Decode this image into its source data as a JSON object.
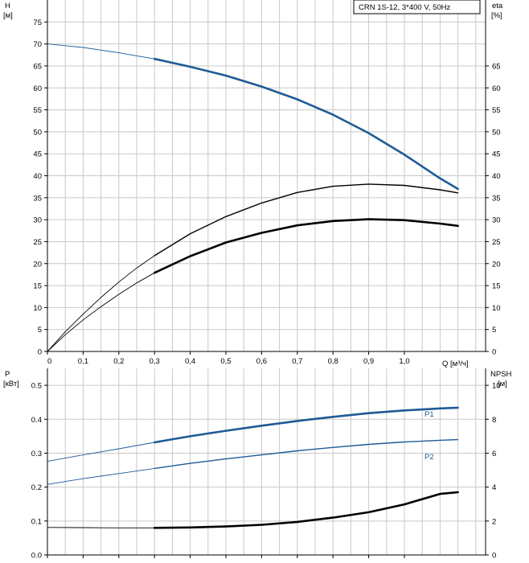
{
  "chart_data": [
    {
      "type": "line",
      "title": "CRN 1S-12, 3*400 V, 50Hz",
      "ylabel_left": "H",
      "ylabel_left_unit": "[м]",
      "ylabel_right": "eta",
      "ylabel_right_unit": "[%]",
      "xlabel": "Q [м³/ч]",
      "xlim": [
        0,
        1.2
      ],
      "ylim_left": [
        0,
        80
      ],
      "ylim_right": [
        0,
        80
      ],
      "x_ticks": [
        "0",
        "0,1",
        "0,2",
        "0,3",
        "0,4",
        "0,5",
        "0,6",
        "0,7",
        "0,8",
        "0,9",
        "1,0"
      ],
      "y_ticks_left": [
        "0",
        "5",
        "10",
        "15",
        "20",
        "25",
        "30",
        "35",
        "40",
        "45",
        "50",
        "55",
        "60",
        "65",
        "70",
        "75"
      ],
      "y_ticks_right": [
        "0",
        "5",
        "10",
        "15",
        "20",
        "25",
        "30",
        "35",
        "40",
        "45",
        "50",
        "55",
        "60",
        "65"
      ],
      "grid": true,
      "series": [
        {
          "id": "head",
          "color": "#1f5a96",
          "axis": "left",
          "x": [
            0,
            0.05,
            0.1,
            0.15,
            0.2,
            0.25,
            0.3,
            0.4,
            0.5,
            0.6,
            0.7,
            0.8,
            0.9,
            1.0,
            1.1,
            1.15
          ],
          "y": [
            70.0,
            69.6,
            69.2,
            68.6,
            68.0,
            67.3,
            66.6,
            64.8,
            62.8,
            60.3,
            57.4,
            53.9,
            49.7,
            44.8,
            39.4,
            37.0
          ]
        },
        {
          "id": "eta",
          "color": "#000000",
          "axis": "right",
          "x": [
            0,
            0.05,
            0.1,
            0.15,
            0.2,
            0.25,
            0.3,
            0.4,
            0.5,
            0.6,
            0.7,
            0.8,
            0.9,
            1.0,
            1.1,
            1.15
          ],
          "y": [
            0,
            4.5,
            8.5,
            12.3,
            15.8,
            19.0,
            21.8,
            26.8,
            30.7,
            33.8,
            36.2,
            37.6,
            38.1,
            37.8,
            36.8,
            36.1
          ]
        },
        {
          "id": "eta_total",
          "color": "#000000",
          "axis": "right",
          "x": [
            0,
            0.05,
            0.1,
            0.15,
            0.2,
            0.25,
            0.3,
            0.4,
            0.5,
            0.6,
            0.7,
            0.8,
            0.9,
            1.0,
            1.1,
            1.15
          ],
          "y": [
            0,
            3.8,
            7.2,
            10.2,
            13.0,
            15.6,
            17.9,
            21.7,
            24.8,
            27.0,
            28.7,
            29.7,
            30.1,
            29.9,
            29.1,
            28.6
          ]
        }
      ]
    },
    {
      "type": "line",
      "ylabel_left": "P",
      "ylabel_left_unit": "[кВт]",
      "ylabel_right": "NPSH",
      "ylabel_right_unit": "[м]",
      "xlim": [
        0,
        1.2
      ],
      "ylim_left": [
        0,
        0.55
      ],
      "ylim_right": [
        0,
        11
      ],
      "y_ticks_left": [
        "0.0",
        "0.1",
        "0.2",
        "0.3",
        "0.4",
        "0.5"
      ],
      "y_ticks_right": [
        "0",
        "2",
        "4",
        "6",
        "8",
        "10"
      ],
      "grid": true,
      "series": [
        {
          "id": "p1",
          "name": "P1",
          "color": "#1f5a96",
          "axis": "left",
          "x": [
            0,
            0.1,
            0.2,
            0.3,
            0.4,
            0.5,
            0.6,
            0.7,
            0.8,
            0.9,
            1.0,
            1.1,
            1.15
          ],
          "y": [
            0.276,
            0.295,
            0.313,
            0.332,
            0.35,
            0.366,
            0.381,
            0.395,
            0.407,
            0.418,
            0.426,
            0.432,
            0.434
          ]
        },
        {
          "id": "p2",
          "name": "P2",
          "color": "#1f5a96",
          "axis": "left",
          "x": [
            0,
            0.1,
            0.2,
            0.3,
            0.4,
            0.5,
            0.6,
            0.7,
            0.8,
            0.9,
            1.0,
            1.1,
            1.15
          ],
          "y": [
            0.208,
            0.225,
            0.24,
            0.255,
            0.27,
            0.283,
            0.295,
            0.307,
            0.317,
            0.326,
            0.333,
            0.338,
            0.34
          ]
        },
        {
          "id": "npsh",
          "color": "#000000",
          "axis": "right",
          "x": [
            0,
            0.1,
            0.2,
            0.3,
            0.4,
            0.5,
            0.6,
            0.7,
            0.8,
            0.9,
            1.0,
            1.1,
            1.15
          ],
          "y": [
            1.62,
            1.61,
            1.6,
            1.6,
            1.62,
            1.68,
            1.78,
            1.95,
            2.2,
            2.52,
            2.98,
            3.6,
            3.7
          ]
        }
      ]
    }
  ]
}
